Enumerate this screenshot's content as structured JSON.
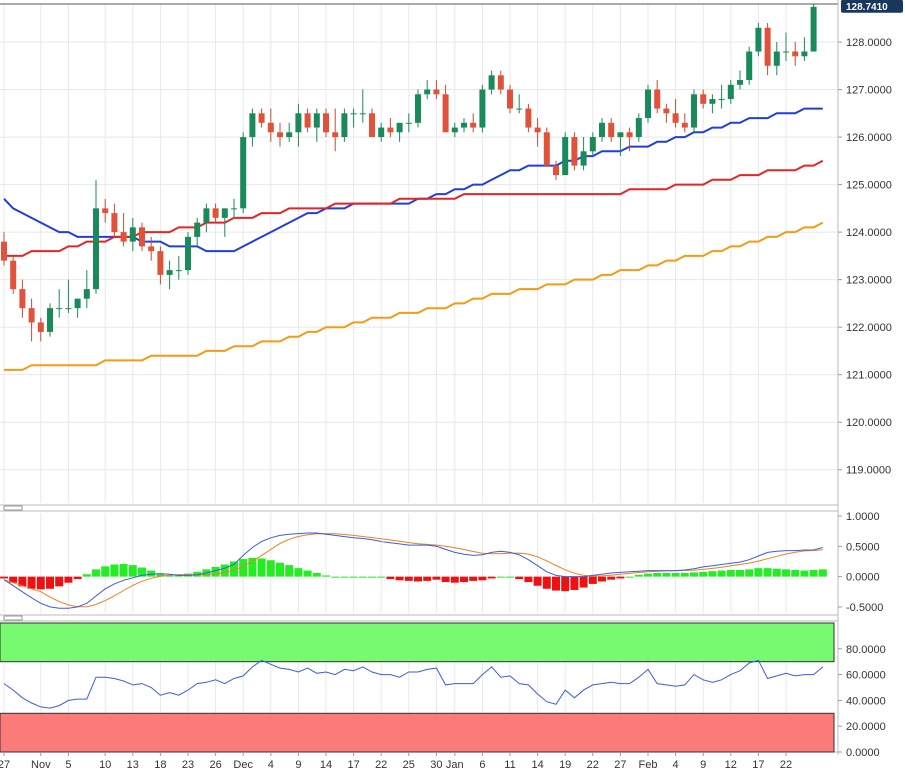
{
  "chart_data": [
    {
      "type": "candlestick",
      "panel": "price",
      "current_price_label": "128.7410",
      "y_ticks": [
        "119.0000",
        "120.0000",
        "121.0000",
        "122.0000",
        "123.0000",
        "124.0000",
        "125.0000",
        "126.0000",
        "127.0000",
        "128.0000"
      ],
      "ylim": [
        118.3,
        128.8
      ],
      "x_tick_labels": [
        {
          "label": "27",
          "bar": 0
        },
        {
          "label": "Nov",
          "bar": 4
        },
        {
          "label": "5",
          "bar": 7
        },
        {
          "label": "10",
          "bar": 11
        },
        {
          "label": "13",
          "bar": 14
        },
        {
          "label": "18",
          "bar": 17
        },
        {
          "label": "23",
          "bar": 20
        },
        {
          "label": "26",
          "bar": 23
        },
        {
          "label": "Dec",
          "bar": 26
        },
        {
          "label": "4",
          "bar": 29
        },
        {
          "label": "9",
          "bar": 32
        },
        {
          "label": "14",
          "bar": 35
        },
        {
          "label": "17",
          "bar": 38
        },
        {
          "label": "22",
          "bar": 41
        },
        {
          "label": "25",
          "bar": 44
        },
        {
          "label": "30",
          "bar": 47
        },
        {
          "label": "Jan",
          "bar": 49
        },
        {
          "label": "6",
          "bar": 52
        },
        {
          "label": "11",
          "bar": 55
        },
        {
          "label": "14",
          "bar": 58
        },
        {
          "label": "19",
          "bar": 61
        },
        {
          "label": "22",
          "bar": 64
        },
        {
          "label": "27",
          "bar": 67
        },
        {
          "label": "Feb",
          "bar": 70
        },
        {
          "label": "4",
          "bar": 73
        },
        {
          "label": "9",
          "bar": 76
        },
        {
          "label": "12",
          "bar": 79
        },
        {
          "label": "17",
          "bar": 82
        },
        {
          "label": "22",
          "bar": 85
        }
      ],
      "candles": [
        [
          123.8,
          124.0,
          123.3,
          123.4
        ],
        [
          123.4,
          123.5,
          122.7,
          122.8
        ],
        [
          122.8,
          123.0,
          122.2,
          122.4
        ],
        [
          122.4,
          122.6,
          121.7,
          122.1
        ],
        [
          122.1,
          122.2,
          121.7,
          121.9
        ],
        [
          121.9,
          122.5,
          121.8,
          122.4
        ],
        [
          122.4,
          122.8,
          122.2,
          122.4
        ],
        [
          122.4,
          123.0,
          122.3,
          122.4
        ],
        [
          122.4,
          122.6,
          122.2,
          122.6
        ],
        [
          122.6,
          123.2,
          122.4,
          122.8
        ],
        [
          122.8,
          125.1,
          122.7,
          124.5
        ],
        [
          124.5,
          124.7,
          124.2,
          124.4
        ],
        [
          124.4,
          124.6,
          123.9,
          124.0
        ],
        [
          124.0,
          124.4,
          123.7,
          123.8
        ],
        [
          123.8,
          124.3,
          123.6,
          124.1
        ],
        [
          124.1,
          124.2,
          123.6,
          123.7
        ],
        [
          123.7,
          123.9,
          123.4,
          123.6
        ],
        [
          123.6,
          123.7,
          122.9,
          123.1
        ],
        [
          123.1,
          123.4,
          122.8,
          123.2
        ],
        [
          123.2,
          123.5,
          123.0,
          123.2
        ],
        [
          123.2,
          124.0,
          123.1,
          123.9
        ],
        [
          123.9,
          124.3,
          123.7,
          124.2
        ],
        [
          124.2,
          124.6,
          124.0,
          124.5
        ],
        [
          124.5,
          124.6,
          124.2,
          124.3
        ],
        [
          124.3,
          124.5,
          123.9,
          124.5
        ],
        [
          124.5,
          124.7,
          124.3,
          124.5
        ],
        [
          124.5,
          126.1,
          124.4,
          126.0
        ],
        [
          126.0,
          126.6,
          125.8,
          126.5
        ],
        [
          126.5,
          126.6,
          126.2,
          126.3
        ],
        [
          126.3,
          126.6,
          125.9,
          126.1
        ],
        [
          126.1,
          126.3,
          125.8,
          126.0
        ],
        [
          126.0,
          126.3,
          125.9,
          126.1
        ],
        [
          126.1,
          126.7,
          125.8,
          126.5
        ],
        [
          126.5,
          126.6,
          126.1,
          126.2
        ],
        [
          126.2,
          126.6,
          125.9,
          126.5
        ],
        [
          126.5,
          126.6,
          126.0,
          126.1
        ],
        [
          126.1,
          126.6,
          125.7,
          126.0
        ],
        [
          126.0,
          126.6,
          125.9,
          126.5
        ],
        [
          126.5,
          126.6,
          126.2,
          126.5
        ],
        [
          126.5,
          127.0,
          126.3,
          126.5
        ],
        [
          126.5,
          126.6,
          126.1,
          126.0
        ],
        [
          126.0,
          126.3,
          125.9,
          126.2
        ],
        [
          126.2,
          126.4,
          126.0,
          126.1
        ],
        [
          126.1,
          126.3,
          125.9,
          126.3
        ],
        [
          126.3,
          126.5,
          126.1,
          126.3
        ],
        [
          126.3,
          127.0,
          126.2,
          126.9
        ],
        [
          126.9,
          127.2,
          126.8,
          127.0
        ],
        [
          127.0,
          127.2,
          126.8,
          126.9
        ],
        [
          126.9,
          127.1,
          126.1,
          126.1
        ],
        [
          126.1,
          126.3,
          126.0,
          126.2
        ],
        [
          126.2,
          126.4,
          126.1,
          126.3
        ],
        [
          126.3,
          126.5,
          126.1,
          126.2
        ],
        [
          126.2,
          127.1,
          126.1,
          127.0
        ],
        [
          127.0,
          127.4,
          126.9,
          127.3
        ],
        [
          127.3,
          127.4,
          126.9,
          127.0
        ],
        [
          127.0,
          127.1,
          126.5,
          126.6
        ],
        [
          126.6,
          126.9,
          126.5,
          126.6
        ],
        [
          126.6,
          126.7,
          126.1,
          126.2
        ],
        [
          126.2,
          126.4,
          125.8,
          126.1
        ],
        [
          126.1,
          126.2,
          125.4,
          125.4
        ],
        [
          125.4,
          125.5,
          125.1,
          125.2
        ],
        [
          125.2,
          126.1,
          125.2,
          126.0
        ],
        [
          126.0,
          126.1,
          125.3,
          125.4
        ],
        [
          125.4,
          126.0,
          125.3,
          125.7
        ],
        [
          125.7,
          126.1,
          125.6,
          126.0
        ],
        [
          126.0,
          126.4,
          125.9,
          126.3
        ],
        [
          126.3,
          126.4,
          125.9,
          126.0
        ],
        [
          126.0,
          126.1,
          125.6,
          126.1
        ],
        [
          126.1,
          126.2,
          125.7,
          126.0
        ],
        [
          126.0,
          126.5,
          125.9,
          126.4
        ],
        [
          126.4,
          127.1,
          126.3,
          127.0
        ],
        [
          127.0,
          127.2,
          126.5,
          126.6
        ],
        [
          126.6,
          126.7,
          126.3,
          126.5
        ],
        [
          126.5,
          126.8,
          126.2,
          126.3
        ],
        [
          126.3,
          126.5,
          126.1,
          126.2
        ],
        [
          126.2,
          127.0,
          126.1,
          126.9
        ],
        [
          126.9,
          127.0,
          126.6,
          126.7
        ],
        [
          126.7,
          126.9,
          126.5,
          126.8
        ],
        [
          126.8,
          127.1,
          126.6,
          126.8
        ],
        [
          126.8,
          127.2,
          126.7,
          127.1
        ],
        [
          127.1,
          127.4,
          127.0,
          127.2
        ],
        [
          127.2,
          127.9,
          127.1,
          127.8
        ],
        [
          127.8,
          128.4,
          127.7,
          128.3
        ],
        [
          128.3,
          128.4,
          127.3,
          127.5
        ],
        [
          127.5,
          128.0,
          127.3,
          127.8
        ],
        [
          127.8,
          128.2,
          127.6,
          127.8
        ],
        [
          127.8,
          128.0,
          127.5,
          127.7
        ],
        [
          127.7,
          128.1,
          127.6,
          127.8
        ],
        [
          127.8,
          128.8,
          127.8,
          128.74
        ]
      ],
      "moving_averages": [
        {
          "color": "#1f3fd8",
          "values": [
            124.7,
            124.5,
            124.4,
            124.3,
            124.2,
            124.1,
            124.0,
            124.0,
            123.9,
            123.9,
            123.9,
            123.9,
            123.9,
            123.9,
            123.9,
            123.8,
            123.8,
            123.8,
            123.7,
            123.7,
            123.7,
            123.7,
            123.6,
            123.6,
            123.6,
            123.6,
            123.7,
            123.8,
            123.9,
            124.0,
            124.1,
            124.2,
            124.3,
            124.4,
            124.4,
            124.5,
            124.5,
            124.5,
            124.6,
            124.6,
            124.6,
            124.6,
            124.6,
            124.6,
            124.6,
            124.7,
            124.7,
            124.8,
            124.8,
            124.9,
            124.9,
            125.0,
            125.0,
            125.1,
            125.2,
            125.3,
            125.3,
            125.4,
            125.4,
            125.4,
            125.4,
            125.5,
            125.5,
            125.6,
            125.6,
            125.7,
            125.7,
            125.7,
            125.8,
            125.8,
            125.8,
            125.9,
            125.9,
            126.0,
            126.0,
            126.1,
            126.1,
            126.2,
            126.2,
            126.3,
            126.3,
            126.4,
            126.4,
            126.4,
            126.5,
            126.5,
            126.5,
            126.6,
            126.6,
            126.6
          ]
        },
        {
          "color": "#e62424",
          "values": [
            123.5,
            123.5,
            123.5,
            123.6,
            123.6,
            123.6,
            123.6,
            123.7,
            123.7,
            123.8,
            123.8,
            123.8,
            123.9,
            123.9,
            123.9,
            124.0,
            124.0,
            124.0,
            124.0,
            124.1,
            124.1,
            124.1,
            124.2,
            124.2,
            124.2,
            124.3,
            124.3,
            124.3,
            124.4,
            124.4,
            124.4,
            124.5,
            124.5,
            124.5,
            124.5,
            124.5,
            124.6,
            124.6,
            124.6,
            124.6,
            124.6,
            124.6,
            124.6,
            124.7,
            124.7,
            124.7,
            124.7,
            124.7,
            124.7,
            124.7,
            124.8,
            124.8,
            124.8,
            124.8,
            124.8,
            124.8,
            124.8,
            124.8,
            124.8,
            124.8,
            124.8,
            124.8,
            124.8,
            124.8,
            124.8,
            124.8,
            124.8,
            124.8,
            124.9,
            124.9,
            124.9,
            124.9,
            124.9,
            125.0,
            125.0,
            125.0,
            125.0,
            125.1,
            125.1,
            125.1,
            125.2,
            125.2,
            125.2,
            125.3,
            125.3,
            125.3,
            125.3,
            125.4,
            125.4,
            125.5
          ]
        },
        {
          "color": "#f59a13",
          "values": [
            121.1,
            121.1,
            121.1,
            121.2,
            121.2,
            121.2,
            121.2,
            121.2,
            121.2,
            121.2,
            121.2,
            121.3,
            121.3,
            121.3,
            121.3,
            121.3,
            121.4,
            121.4,
            121.4,
            121.4,
            121.4,
            121.4,
            121.5,
            121.5,
            121.5,
            121.6,
            121.6,
            121.6,
            121.7,
            121.7,
            121.7,
            121.8,
            121.8,
            121.9,
            121.9,
            122.0,
            122.0,
            122.0,
            122.1,
            122.1,
            122.2,
            122.2,
            122.2,
            122.3,
            122.3,
            122.3,
            122.4,
            122.4,
            122.4,
            122.5,
            122.5,
            122.6,
            122.6,
            122.7,
            122.7,
            122.7,
            122.8,
            122.8,
            122.8,
            122.9,
            122.9,
            122.9,
            123.0,
            123.0,
            123.0,
            123.1,
            123.1,
            123.2,
            123.2,
            123.2,
            123.3,
            123.3,
            123.4,
            123.4,
            123.5,
            123.5,
            123.5,
            123.6,
            123.6,
            123.7,
            123.7,
            123.8,
            123.8,
            123.9,
            123.9,
            124.0,
            124.0,
            124.1,
            124.1,
            124.2
          ]
        }
      ]
    },
    {
      "type": "histogram+line",
      "panel": "oscillator",
      "y_ticks": [
        "1.0000",
        "0.5000",
        "0.0000",
        "-0.5000"
      ],
      "ylim": [
        -0.6,
        1.05
      ],
      "histogram_positive_color": "#22ee22",
      "histogram_negative_color": "#ee1111",
      "histogram": [
        -0.03,
        -0.1,
        -0.16,
        -0.2,
        -0.21,
        -0.2,
        -0.16,
        -0.1,
        -0.04,
        0.04,
        0.12,
        0.17,
        0.2,
        0.21,
        0.19,
        0.15,
        0.1,
        0.05,
        0.02,
        0.03,
        0.05,
        0.08,
        0.12,
        0.16,
        0.2,
        0.25,
        0.29,
        0.31,
        0.3,
        0.27,
        0.23,
        0.19,
        0.14,
        0.1,
        0.06,
        0.02,
        0.0,
        0.0,
        0.0,
        0.0,
        0.0,
        0.0,
        -0.04,
        -0.06,
        -0.07,
        -0.08,
        -0.07,
        -0.05,
        -0.09,
        -0.1,
        -0.09,
        -0.07,
        -0.06,
        -0.03,
        0.0,
        0.0,
        -0.04,
        -0.09,
        -0.15,
        -0.2,
        -0.23,
        -0.24,
        -0.22,
        -0.18,
        -0.12,
        -0.08,
        -0.05,
        -0.03,
        0.0,
        0.03,
        0.05,
        0.06,
        0.06,
        0.06,
        0.06,
        0.07,
        0.08,
        0.09,
        0.1,
        0.11,
        0.11,
        0.12,
        0.14,
        0.14,
        0.13,
        0.12,
        0.11,
        0.1,
        0.11,
        0.12
      ],
      "blue_line": [
        -0.05,
        -0.15,
        -0.25,
        -0.35,
        -0.44,
        -0.5,
        -0.52,
        -0.52,
        -0.5,
        -0.44,
        -0.32,
        -0.2,
        -0.12,
        -0.06,
        -0.02,
        0.02,
        0.04,
        0.05,
        0.04,
        0.02,
        0.02,
        0.03,
        0.06,
        0.1,
        0.14,
        0.2,
        0.35,
        0.48,
        0.58,
        0.64,
        0.68,
        0.7,
        0.71,
        0.72,
        0.72,
        0.7,
        0.68,
        0.66,
        0.64,
        0.63,
        0.61,
        0.58,
        0.56,
        0.54,
        0.52,
        0.52,
        0.52,
        0.5,
        0.45,
        0.4,
        0.37,
        0.35,
        0.36,
        0.4,
        0.42,
        0.4,
        0.36,
        0.28,
        0.18,
        0.08,
        0.02,
        0.0,
        0.0,
        0.0,
        0.02,
        0.04,
        0.06,
        0.07,
        0.08,
        0.09,
        0.1,
        0.1,
        0.1,
        0.1,
        0.11,
        0.13,
        0.16,
        0.18,
        0.2,
        0.22,
        0.24,
        0.28,
        0.34,
        0.4,
        0.42,
        0.43,
        0.43,
        0.44,
        0.44,
        0.48
      ]
    },
    {
      "type": "line",
      "panel": "rsi",
      "y_ticks": [
        "80.0000",
        "60.0000",
        "40.0000",
        "20.0000",
        "0.0000"
      ],
      "ylim": [
        0,
        100
      ],
      "overbought_band": [
        70,
        100
      ],
      "oversold_band": [
        0,
        30
      ],
      "values": [
        53,
        48,
        42,
        38,
        35,
        34,
        36,
        40,
        41,
        41,
        58,
        58,
        57,
        55,
        52,
        53,
        50,
        44,
        46,
        44,
        48,
        53,
        54,
        56,
        53,
        57,
        59,
        66,
        71,
        68,
        65,
        64,
        62,
        65,
        61,
        62,
        60,
        64,
        63,
        66,
        62,
        60,
        60,
        58,
        62,
        62,
        64,
        65,
        52,
        53,
        53,
        53,
        60,
        66,
        58,
        59,
        53,
        52,
        45,
        39,
        37,
        48,
        42,
        48,
        52,
        53,
        54,
        53,
        53,
        58,
        64,
        53,
        52,
        51,
        52,
        60,
        56,
        54,
        56,
        60,
        63,
        69,
        71,
        57,
        59,
        61,
        59,
        60,
        60,
        66
      ]
    }
  ]
}
